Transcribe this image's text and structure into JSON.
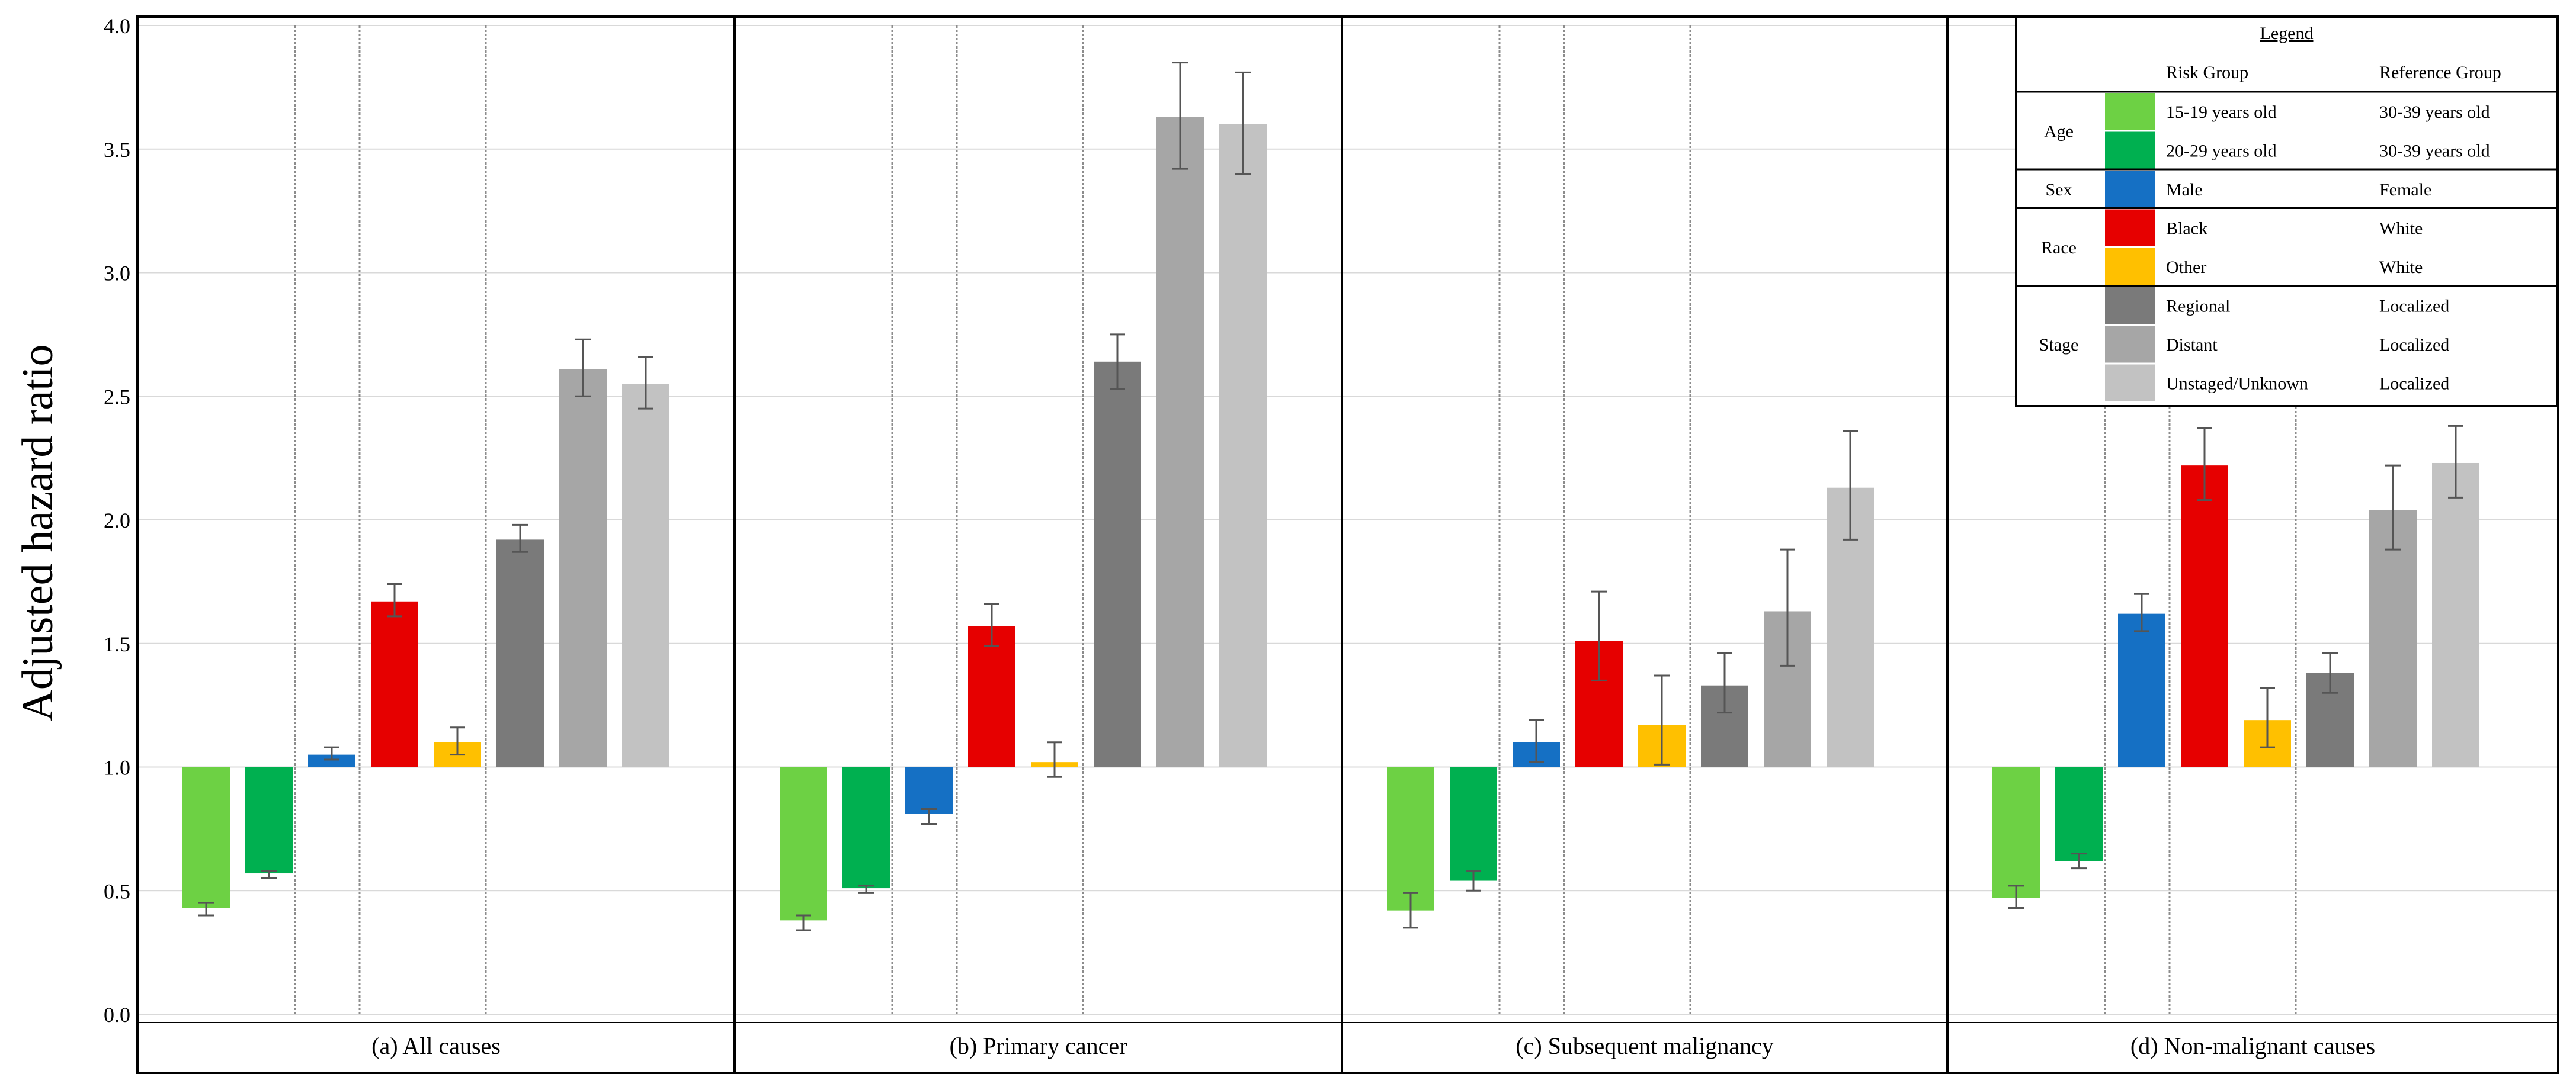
{
  "chart_data": {
    "type": "bar",
    "ylabel": "Adjusted hazard ratio",
    "ylim": [
      0,
      4.0
    ],
    "yticks": [
      "0.0",
      "0.5",
      "1.0",
      "1.5",
      "2.0",
      "2.5",
      "3.0",
      "3.5",
      "4.0"
    ],
    "baseline": 1.0,
    "grid": true,
    "categories": [
      "15-19 years old",
      "20-29 years old",
      "Male",
      "Black",
      "Other",
      "Regional",
      "Distant",
      "Unstaged/Unknown"
    ],
    "colors": [
      "#6dd144",
      "#00b050",
      "#1570c4",
      "#e60000",
      "#ffc000",
      "#7a7a7a",
      "#a6a6a6",
      "#c2c2c2"
    ],
    "panels": [
      {
        "title": "(a) All causes",
        "values": [
          0.43,
          0.57,
          1.05,
          1.67,
          1.1,
          1.92,
          2.61,
          2.55
        ],
        "ci_low": [
          0.4,
          0.55,
          1.03,
          1.61,
          1.05,
          1.87,
          2.5,
          2.45
        ],
        "ci_high": [
          0.45,
          0.58,
          1.08,
          1.74,
          1.16,
          1.98,
          2.73,
          2.66
        ]
      },
      {
        "title": "(b) Primary cancer",
        "values": [
          0.38,
          0.51,
          0.81,
          1.57,
          1.02,
          2.64,
          3.63,
          3.6
        ],
        "ci_low": [
          0.34,
          0.49,
          0.77,
          1.49,
          0.96,
          2.53,
          3.42,
          3.4
        ],
        "ci_high": [
          0.4,
          0.52,
          0.83,
          1.66,
          1.1,
          2.75,
          3.85,
          3.81
        ]
      },
      {
        "title": "(c) Subsequent malignancy",
        "values": [
          0.42,
          0.54,
          1.1,
          1.51,
          1.17,
          1.33,
          1.63,
          2.13
        ],
        "ci_low": [
          0.35,
          0.5,
          1.02,
          1.35,
          1.01,
          1.22,
          1.41,
          1.92
        ],
        "ci_high": [
          0.49,
          0.58,
          1.19,
          1.71,
          1.37,
          1.46,
          1.88,
          2.36
        ]
      },
      {
        "title": "(d) Non-malignant causes",
        "values": [
          0.47,
          0.62,
          1.62,
          2.22,
          1.19,
          1.38,
          2.04,
          2.23
        ],
        "ci_low": [
          0.43,
          0.59,
          1.55,
          2.08,
          1.08,
          1.3,
          1.88,
          2.09
        ],
        "ci_high": [
          0.52,
          0.65,
          1.7,
          2.37,
          1.32,
          1.46,
          2.22,
          2.38
        ]
      }
    ],
    "legend": {
      "title": "Legend",
      "header_risk": "Risk Group",
      "header_reference": "Reference Group",
      "placement": "top-right",
      "groups": [
        {
          "name": "Age",
          "rows": [
            {
              "risk": "15-19 years old",
              "reference": "30-39 years old",
              "color": "#6dd144"
            },
            {
              "risk": "20-29 years old",
              "reference": "30-39 years old",
              "color": "#00b050"
            }
          ]
        },
        {
          "name": "Sex",
          "rows": [
            {
              "risk": "Male",
              "reference": "Female",
              "color": "#1570c4"
            }
          ]
        },
        {
          "name": "Race",
          "rows": [
            {
              "risk": "Black",
              "reference": "White",
              "color": "#e60000"
            },
            {
              "risk": "Other",
              "reference": "White",
              "color": "#ffc000"
            }
          ]
        },
        {
          "name": "Stage",
          "rows": [
            {
              "risk": "Regional",
              "reference": "Localized",
              "color": "#7a7a7a"
            },
            {
              "risk": "Distant",
              "reference": "Localized",
              "color": "#a6a6a6"
            },
            {
              "risk": "Unstaged/Unknown",
              "reference": "Localized",
              "color": "#c2c2c2"
            }
          ]
        }
      ]
    }
  }
}
